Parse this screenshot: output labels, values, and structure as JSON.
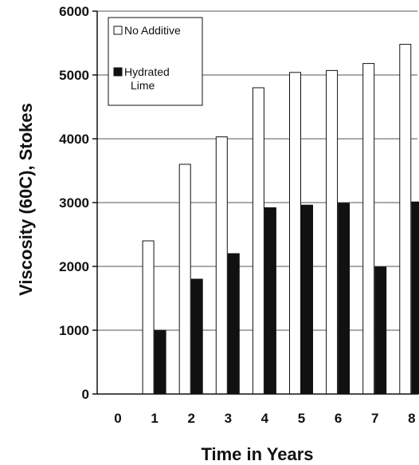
{
  "chart_data": {
    "type": "bar",
    "xlabel": "Time in Years",
    "ylabel": "Viscosity (60C), Stokes",
    "ylim": [
      0,
      6000
    ],
    "yticks": [
      "0",
      "1000",
      "2000",
      "3000",
      "4000",
      "5000",
      "6000"
    ],
    "categories": [
      "0",
      "1",
      "2",
      "3",
      "4",
      "5",
      "6",
      "7",
      "8"
    ],
    "grid": true,
    "legend_position": "top-left",
    "legend_entries": [
      "No Additive",
      "Hydrated Lime"
    ],
    "series": [
      {
        "name": "No Additive",
        "color": "#ffffff",
        "values": [
          null,
          2400,
          3600,
          4030,
          4800,
          5040,
          5070,
          5180,
          5480
        ]
      },
      {
        "name": "Hydrated Lime",
        "color": "#111111",
        "values": [
          null,
          1000,
          1800,
          2200,
          2920,
          2960,
          2990,
          1990,
          3010
        ]
      }
    ]
  }
}
